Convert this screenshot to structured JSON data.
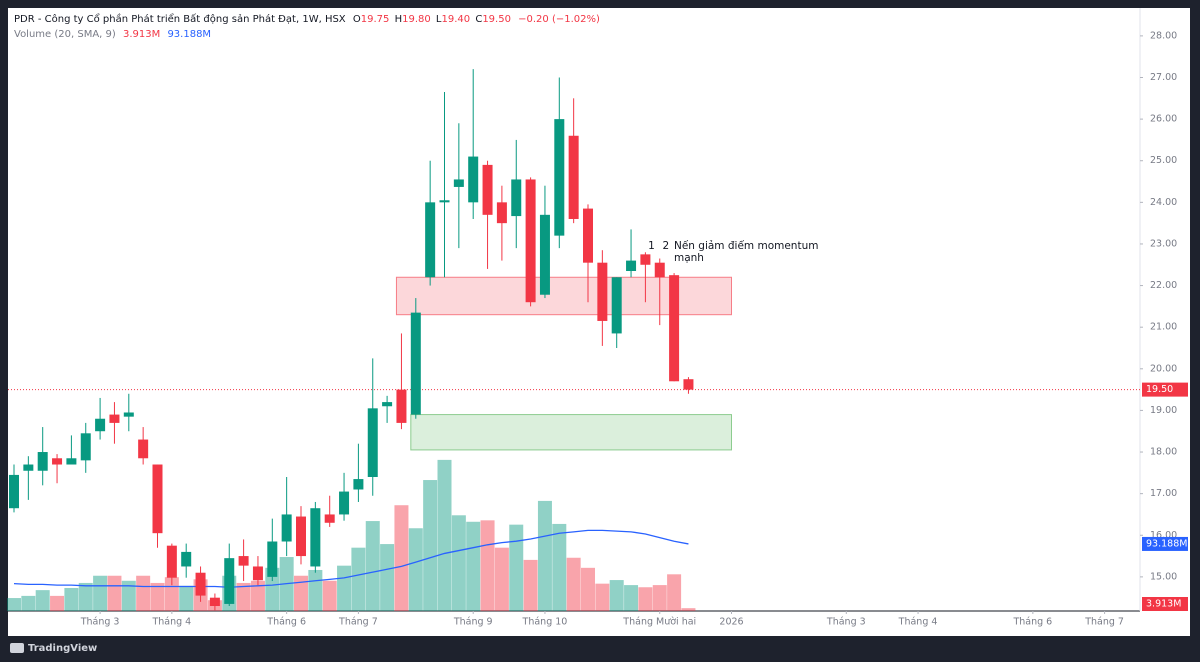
{
  "header": {
    "symbol": "PDR - Công ty Cổ phần Phát triển Bất động sản Phát Đạt, 1W, HSX",
    "ohlc": [
      {
        "key": "O",
        "value": "19.75"
      },
      {
        "key": "H",
        "value": "19.80"
      },
      {
        "key": "L",
        "value": "19.40"
      },
      {
        "key": "C",
        "value": "19.50"
      }
    ],
    "change": "−0.20 (−1.02%)",
    "volume_name": "Volume (20, SMA, 9)",
    "volume_value": "3.913M",
    "volume_sma": "93.188M"
  },
  "chart_data": {
    "type": "candlestick",
    "open": [
      16.65,
      17.55,
      17.55,
      17.85,
      17.7,
      17.8,
      18.5,
      18.9,
      18.85,
      18.3,
      17.7,
      15.75,
      15.25,
      15.1,
      14.5,
      14.35,
      15.5,
      15.25,
      15.0,
      15.85,
      16.45,
      15.25,
      16.5,
      16.5,
      17.1,
      17.4,
      19.1,
      19.5,
      18.9,
      22.2,
      24.0,
      24.37,
      24.0,
      24.9,
      24.0,
      23.67,
      24.55,
      21.78,
      23.2,
      25.6,
      23.85,
      22.55,
      20.85,
      22.35,
      22.75,
      22.55,
      22.25,
      19.75
    ],
    "high": [
      17.7,
      17.9,
      18.6,
      17.95,
      18.4,
      18.7,
      19.3,
      19.2,
      19.4,
      18.6,
      17.7,
      15.8,
      15.8,
      15.25,
      14.6,
      15.8,
      15.9,
      15.5,
      16.4,
      17.4,
      16.7,
      16.8,
      16.95,
      17.5,
      18.2,
      20.25,
      19.35,
      20.85,
      21.7,
      25.0,
      26.65,
      25.9,
      27.2,
      25.0,
      24.4,
      25.5,
      24.6,
      24.4,
      27.0,
      26.5,
      23.95,
      22.85,
      22.2,
      23.35,
      22.8,
      22.65,
      22.3,
      19.8
    ],
    "low": [
      16.55,
      16.85,
      17.2,
      17.25,
      17.7,
      17.5,
      18.3,
      18.2,
      18.5,
      17.7,
      15.7,
      14.8,
      14.98,
      14.4,
      14.2,
      14.3,
      14.9,
      14.8,
      14.9,
      15.5,
      15.3,
      15.1,
      16.2,
      16.35,
      16.8,
      16.95,
      18.7,
      18.55,
      18.8,
      22.0,
      22.2,
      22.9,
      23.6,
      22.4,
      22.6,
      22.9,
      21.5,
      21.7,
      22.9,
      23.5,
      21.6,
      20.55,
      20.5,
      22.2,
      21.6,
      21.05,
      19.7,
      19.4
    ],
    "close": [
      17.45,
      17.7,
      18.0,
      17.7,
      17.85,
      18.45,
      18.8,
      18.7,
      18.95,
      17.85,
      16.05,
      14.98,
      15.6,
      14.55,
      14.3,
      15.45,
      15.27,
      14.92,
      15.85,
      16.5,
      15.5,
      16.65,
      16.3,
      17.05,
      17.35,
      19.05,
      19.2,
      18.7,
      21.35,
      24.0,
      24.05,
      24.55,
      25.1,
      23.7,
      23.5,
      24.55,
      21.6,
      23.7,
      26.0,
      23.6,
      22.55,
      21.15,
      22.2,
      22.6,
      22.5,
      22.2,
      19.7,
      19.5
    ],
    "volume": [
      18,
      21,
      29,
      21,
      32,
      39,
      49,
      49,
      42,
      49,
      39,
      47,
      35,
      44,
      15,
      49,
      39,
      42,
      60,
      75,
      49,
      57,
      42,
      63,
      88,
      125,
      93,
      147,
      115,
      182,
      210,
      133,
      124,
      126,
      88,
      120,
      71,
      153,
      121,
      74,
      60,
      38,
      43,
      36,
      33,
      36,
      51,
      3.913
    ],
    "volume_sma": [
      38,
      37,
      37,
      36,
      36,
      35,
      35,
      35,
      35,
      34,
      34,
      34,
      34,
      34,
      34,
      33,
      34,
      35,
      36,
      38,
      40,
      42,
      44,
      46,
      50,
      54,
      58,
      62,
      68,
      74,
      80,
      84,
      88,
      92,
      95,
      97,
      100,
      104,
      108,
      110,
      112,
      112,
      111,
      110,
      107,
      102,
      97,
      93.188
    ],
    "up_color": "#089981",
    "down_color": "#f23645",
    "sma_color": "#2962ff",
    "ylim": [
      14.18,
      28.67
    ],
    "volume_lim": [
      0,
      838
    ],
    "yticks": [
      {
        "value": 15,
        "label": "15.00"
      },
      {
        "value": 16,
        "label": "16.00"
      },
      {
        "value": 17,
        "label": "17.00"
      },
      {
        "value": 18,
        "label": "18.00"
      },
      {
        "value": 19,
        "label": "19.00"
      },
      {
        "value": 20,
        "label": "20.00"
      },
      {
        "value": 21,
        "label": "21.00"
      },
      {
        "value": 22,
        "label": "22.00"
      },
      {
        "value": 23,
        "label": "23.00"
      },
      {
        "value": 24,
        "label": "24.00"
      },
      {
        "value": 25,
        "label": "25.00"
      },
      {
        "value": 26,
        "label": "26.00"
      },
      {
        "value": 27,
        "label": "27.00"
      },
      {
        "value": 28,
        "label": "28.00"
      }
    ],
    "last_price": {
      "value": 19.5,
      "label": "19.50"
    },
    "xticks": [
      {
        "value": 6,
        "label": "Tháng 3"
      },
      {
        "value": 11,
        "label": "Tháng 4"
      },
      {
        "value": 19,
        "label": "Tháng 6"
      },
      {
        "value": 24,
        "label": "Tháng 7"
      },
      {
        "value": 32,
        "label": "Tháng 9"
      },
      {
        "value": 37,
        "label": "Tháng 10"
      },
      {
        "value": 45,
        "label": "Tháng Mười hai"
      },
      {
        "value": 50,
        "label": "2026"
      },
      {
        "value": 58,
        "label": "Tháng 3"
      },
      {
        "value": 63,
        "label": "Tháng 4"
      },
      {
        "value": 71,
        "label": "Tháng 6"
      },
      {
        "value": 76,
        "label": "Tháng 7"
      }
    ],
    "zones": [
      {
        "top": 22.2,
        "bottom": 21.3,
        "start": 27,
        "end": 50,
        "color": "#f23645"
      },
      {
        "top": 18.9,
        "bottom": 18.05,
        "start": 28,
        "end": 50,
        "color": "#4caf50"
      }
    ],
    "annotations": [
      {
        "text": "1",
        "bar": 44.4,
        "price": 22.95
      },
      {
        "text": "2",
        "bar": 45.4,
        "price": 22.95
      },
      {
        "text": "Nến giảm điểm momentum mạnh",
        "bar": 46.2,
        "price": 22.95
      }
    ]
  },
  "footer": {
    "brand": "TradingView"
  }
}
